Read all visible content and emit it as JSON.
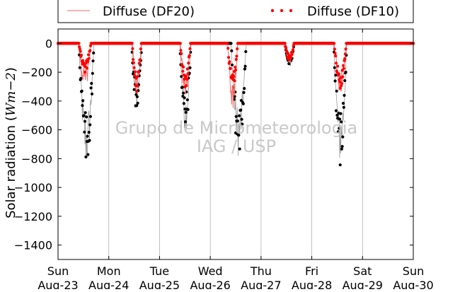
{
  "chart_data": {
    "type": "scatter",
    "title": "",
    "xlabel": "",
    "ylabel": "Solar radiation ($Wm-2$)",
    "ylabel_parts": {
      "text": "Solar radiation (",
      "unit": "Wm",
      "unit_exp": "−2",
      "close": ")"
    },
    "ylim": [
      -1500,
      100
    ],
    "yticks": [
      0,
      -200,
      -400,
      -600,
      -800,
      -1000,
      -1200,
      -1400
    ],
    "xlim": [
      0,
      7
    ],
    "xticks": [
      {
        "x": 0,
        "day": "Sun",
        "date": "Aug-23"
      },
      {
        "x": 1,
        "day": "Mon",
        "date": "Aug-24"
      },
      {
        "x": 2,
        "day": "Tue",
        "date": "Aug-25"
      },
      {
        "x": 3,
        "day": "Wed",
        "date": "Aug-26"
      },
      {
        "x": 4,
        "day": "Thu",
        "date": "Aug-27"
      },
      {
        "x": 5,
        "day": "Fri",
        "date": "Aug-28"
      },
      {
        "x": 6,
        "day": "Sat",
        "date": "Aug-29"
      },
      {
        "x": 7,
        "day": "Sun",
        "date": "Aug-30"
      }
    ],
    "grid": "vertical",
    "legend_position": "top",
    "watermark": [
      "Grupo de Micrometeorologia",
      "IAG / USP"
    ],
    "series": [
      {
        "name": "",
        "kind": "dots",
        "color": "#000000",
        "note": "unlabeled black series (global radiation)",
        "days": [
          {
            "min": -870,
            "center": 0.56,
            "width": 0.3
          },
          {
            "min": -480,
            "center": 1.55,
            "width": 0.2
          },
          {
            "min": -620,
            "center": 2.51,
            "width": 0.22
          },
          {
            "min": -790,
            "center": 3.56,
            "width": 0.3
          },
          {
            "min": -170,
            "center": 4.56,
            "width": 0.18
          },
          {
            "min": -850,
            "center": 5.56,
            "width": 0.26
          }
        ]
      },
      {
        "name": "Diffuse (DF20)",
        "kind": "line",
        "color": "#ff6666",
        "days": [
          {
            "min": -330,
            "center": 0.53,
            "width": 0.24
          },
          {
            "min": -370,
            "center": 1.55,
            "width": 0.18
          },
          {
            "min": -400,
            "center": 2.51,
            "width": 0.2
          },
          {
            "min": -470,
            "center": 3.44,
            "width": 0.2
          },
          {
            "min": -150,
            "center": 4.56,
            "width": 0.18
          },
          {
            "min": -350,
            "center": 5.56,
            "width": 0.24
          }
        ]
      },
      {
        "name": "Diffuse (DF10)",
        "kind": "dots",
        "color": "#ff0000",
        "days": [
          {
            "min": -210,
            "center": 0.53,
            "width": 0.24
          },
          {
            "min": -340,
            "center": 1.55,
            "width": 0.18
          },
          {
            "min": -330,
            "center": 2.51,
            "width": 0.2
          },
          {
            "min": -330,
            "center": 3.44,
            "width": 0.2
          },
          {
            "min": -130,
            "center": 4.56,
            "width": 0.18
          },
          {
            "min": -320,
            "center": 5.56,
            "width": 0.24
          }
        ]
      }
    ]
  }
}
